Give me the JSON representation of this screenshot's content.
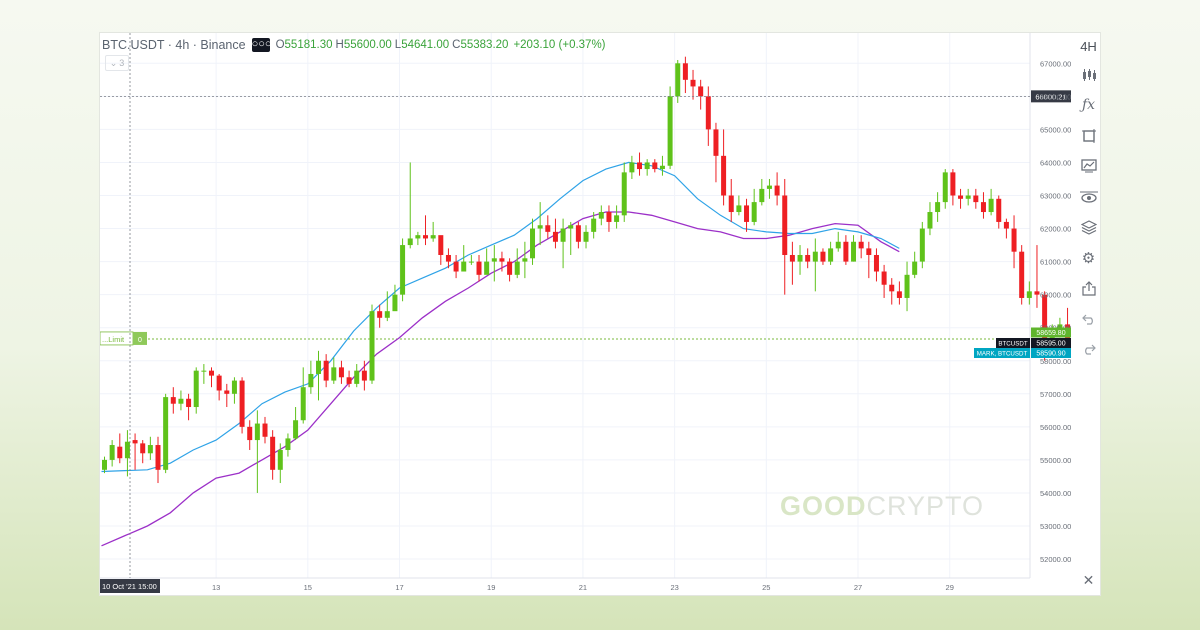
{
  "header": {
    "symbol": "BTC.USDT · 4h · Binance",
    "more_icon": "more-dots-icon",
    "open_label": "O",
    "open_value": "55181.30",
    "high_label": "H",
    "high_value": "55600.00",
    "low_label": "L",
    "low_value": "54641.00",
    "close_label": "C",
    "close_value": "55383.20",
    "change": "+203.10 (+0.37%)",
    "indicator_count": "3"
  },
  "toolbar": {
    "timeframe": "4H",
    "icons": [
      "candles-icon",
      "function-icon",
      "crop-icon",
      "replay-icon",
      "eye-icon",
      "layers-icon",
      "settings-icon",
      "share-icon",
      "undo-icon",
      "redo-icon",
      "close-icon"
    ]
  },
  "order_line": {
    "label": "...Limit",
    "qty": "0"
  },
  "crosshair": {
    "x_label": "10 Oct '21   15:00",
    "y_label": "66000.21",
    "y_value": 66000.21
  },
  "price_tags": {
    "upper": "58659.80",
    "last_symbol": "BTCUSDT",
    "last_price": "58595.00",
    "mark_symbol": "MARK, BTCUSDT",
    "mark_price": "58590.90"
  },
  "brand": {
    "good": "GOOD",
    "crypto": "CRYPTO"
  },
  "colors": {
    "up": "#5fc21a",
    "down": "#ee1f23",
    "ma_fast": "#2fa3e7",
    "ma_slow": "#9c30c8",
    "order_line": "#79b93d",
    "last_tag": "#131722",
    "mark_tag": "#00a6c2"
  },
  "chart_data": {
    "type": "candlestick",
    "interval": "4h",
    "price_range": [
      51800,
      67400
    ],
    "y_ticks": [
      52000,
      53000,
      54000,
      55000,
      56000,
      57000,
      58000,
      59000,
      60000,
      61000,
      62000,
      63000,
      64000,
      65000,
      66000,
      67000
    ],
    "x_tick_labels": [
      "13",
      "15",
      "17",
      "19",
      "21",
      "23",
      "25",
      "27",
      "29"
    ],
    "x_tick_days": [
      13,
      15,
      17,
      19,
      21,
      23,
      25,
      27,
      29
    ],
    "start_day": 10.5,
    "days_per_candle": 0.1667,
    "candles": [
      [
        54700,
        55000,
        54600,
        55100
      ],
      [
        55000,
        55450,
        54800,
        55600
      ],
      [
        55400,
        55050,
        54900,
        55800
      ],
      [
        55050,
        55550,
        54500,
        55900
      ],
      [
        55600,
        55500,
        54700,
        55800
      ],
      [
        55500,
        55200,
        54900,
        55600
      ],
      [
        55200,
        55450,
        55000,
        55700
      ],
      [
        55450,
        54700,
        54300,
        55700
      ],
      [
        54700,
        56900,
        54600,
        57000
      ],
      [
        56900,
        56700,
        56400,
        57200
      ],
      [
        56700,
        56850,
        56500,
        57100
      ],
      [
        56850,
        56600,
        56200,
        57000
      ],
      [
        56600,
        57700,
        56400,
        57800
      ],
      [
        57700,
        57700,
        57300,
        57900
      ],
      [
        57700,
        57550,
        57200,
        57800
      ],
      [
        57550,
        57100,
        56800,
        57600
      ],
      [
        57100,
        57000,
        56600,
        57300
      ],
      [
        57000,
        57400,
        56700,
        57500
      ],
      [
        57400,
        56000,
        55800,
        57500
      ],
      [
        56000,
        55600,
        55300,
        56200
      ],
      [
        55600,
        56100,
        54000,
        56500
      ],
      [
        56100,
        55700,
        55500,
        56300
      ],
      [
        55700,
        54700,
        54400,
        55900
      ],
      [
        54700,
        55300,
        54300,
        55500
      ],
      [
        55300,
        55650,
        55100,
        55800
      ],
      [
        55650,
        56200,
        55600,
        56600
      ],
      [
        56200,
        57200,
        56100,
        57800
      ],
      [
        57200,
        57600,
        57000,
        58000
      ],
      [
        57600,
        58000,
        56800,
        58300
      ],
      [
        58000,
        57400,
        57200,
        58200
      ],
      [
        57400,
        57800,
        57300,
        58100
      ],
      [
        57800,
        57500,
        57300,
        58000
      ],
      [
        57500,
        57300,
        57200,
        57700
      ],
      [
        57300,
        57700,
        57200,
        57900
      ],
      [
        57700,
        57400,
        57100,
        58000
      ],
      [
        57400,
        59500,
        57300,
        59700
      ],
      [
        59500,
        59300,
        59000,
        59700
      ],
      [
        59300,
        59500,
        59200,
        60100
      ],
      [
        59500,
        60000,
        59600,
        60300
      ],
      [
        60000,
        61500,
        59800,
        61700
      ],
      [
        61500,
        61700,
        61400,
        64000
      ],
      [
        61700,
        61800,
        61500,
        61900
      ],
      [
        61800,
        61700,
        61500,
        62400
      ],
      [
        61700,
        61800,
        61600,
        62200
      ],
      [
        61800,
        61200,
        60900,
        61700
      ],
      [
        61200,
        61000,
        60800,
        61400
      ],
      [
        61000,
        60700,
        60500,
        61200
      ],
      [
        60700,
        61000,
        60800,
        61500
      ],
      [
        61000,
        61000,
        60900,
        61200
      ],
      [
        61000,
        60600,
        60400,
        61200
      ],
      [
        60600,
        61000,
        60700,
        61400
      ],
      [
        61000,
        61100,
        60400,
        61500
      ],
      [
        61100,
        61000,
        60700,
        61300
      ],
      [
        61000,
        60600,
        60400,
        61100
      ],
      [
        60600,
        61000,
        60500,
        61400
      ],
      [
        61000,
        61100,
        60500,
        61600
      ],
      [
        61100,
        62000,
        60900,
        62300
      ],
      [
        62000,
        62100,
        61500,
        62800
      ],
      [
        62100,
        61900,
        61700,
        62400
      ],
      [
        61900,
        61600,
        61400,
        62300
      ],
      [
        61600,
        62000,
        60800,
        62300
      ],
      [
        62000,
        62100,
        61200,
        62200
      ],
      [
        62100,
        61600,
        61400,
        62200
      ],
      [
        61600,
        61900,
        61400,
        62100
      ],
      [
        61900,
        62300,
        61700,
        62500
      ],
      [
        62300,
        62500,
        62100,
        62700
      ],
      [
        62500,
        62200,
        61900,
        62700
      ],
      [
        62200,
        62400,
        62000,
        62700
      ],
      [
        62400,
        63700,
        62200,
        64000
      ],
      [
        63700,
        64000,
        63500,
        64200
      ],
      [
        64000,
        63800,
        63600,
        64300
      ],
      [
        63800,
        64000,
        63600,
        64100
      ],
      [
        64000,
        63800,
        63700,
        64100
      ],
      [
        63800,
        63900,
        63600,
        64200
      ],
      [
        63900,
        66000,
        63800,
        66300
      ],
      [
        66000,
        67000,
        65800,
        67100
      ],
      [
        67000,
        66500,
        66100,
        67200
      ],
      [
        66500,
        66300,
        65900,
        66800
      ],
      [
        66300,
        66000,
        65600,
        66500
      ],
      [
        66000,
        65000,
        64500,
        66300
      ],
      [
        65000,
        64200,
        63400,
        65200
      ],
      [
        64200,
        63000,
        62700,
        65000
      ],
      [
        63000,
        62500,
        62200,
        63500
      ],
      [
        62500,
        62700,
        62400,
        63000
      ],
      [
        62700,
        62200,
        61900,
        62900
      ],
      [
        62200,
        62800,
        62100,
        63200
      ],
      [
        62800,
        63200,
        62700,
        63500
      ],
      [
        63200,
        63300,
        62900,
        63500
      ],
      [
        63300,
        63000,
        62700,
        63700
      ],
      [
        63000,
        61200,
        60000,
        63500
      ],
      [
        61200,
        61000,
        60300,
        61600
      ],
      [
        61000,
        61200,
        60600,
        61500
      ],
      [
        61200,
        61000,
        60800,
        61400
      ],
      [
        61000,
        61300,
        60100,
        61700
      ],
      [
        61300,
        61000,
        60900,
        61400
      ],
      [
        61000,
        61400,
        60900,
        61600
      ],
      [
        61400,
        61600,
        61300,
        61900
      ],
      [
        61600,
        61000,
        60900,
        61800
      ],
      [
        61000,
        61600,
        61000,
        61800
      ],
      [
        61600,
        61400,
        61100,
        61800
      ],
      [
        61400,
        61200,
        60500,
        61600
      ],
      [
        61200,
        60700,
        60400,
        61400
      ],
      [
        60700,
        60300,
        59900,
        60900
      ],
      [
        60300,
        60100,
        59700,
        60500
      ],
      [
        60100,
        59900,
        59700,
        60400
      ],
      [
        59900,
        60600,
        59500,
        61000
      ],
      [
        60600,
        61000,
        60500,
        61300
      ],
      [
        61000,
        62000,
        60800,
        62200
      ],
      [
        62000,
        62500,
        61800,
        62800
      ],
      [
        62500,
        62800,
        62200,
        63100
      ],
      [
        62800,
        63700,
        62600,
        63800
      ],
      [
        63700,
        63000,
        62700,
        63800
      ],
      [
        63000,
        62900,
        62600,
        63200
      ],
      [
        62900,
        63000,
        62700,
        63200
      ],
      [
        63000,
        62800,
        62600,
        63200
      ],
      [
        62800,
        62500,
        62300,
        63100
      ],
      [
        62500,
        62900,
        62400,
        63200
      ],
      [
        62900,
        62200,
        62000,
        63000
      ],
      [
        62200,
        62000,
        61700,
        62300
      ],
      [
        62000,
        61300,
        60800,
        62400
      ],
      [
        61300,
        59900,
        59700,
        61500
      ],
      [
        59900,
        60100,
        59700,
        60400
      ],
      [
        60100,
        60000,
        59600,
        61500
      ],
      [
        60000,
        58650,
        58000,
        60100
      ],
      [
        58650,
        58900,
        58500,
        59100
      ],
      [
        58900,
        59100,
        58700,
        59300
      ],
      [
        59100,
        58600,
        58500,
        59600
      ]
    ],
    "ma_fast": [
      [
        10.5,
        54650
      ],
      [
        11.5,
        54700
      ],
      [
        12,
        54900
      ],
      [
        12.5,
        55300
      ],
      [
        13,
        55600
      ],
      [
        13.5,
        56100
      ],
      [
        14,
        56700
      ],
      [
        14.5,
        57050
      ],
      [
        15,
        57300
      ],
      [
        15.5,
        58000
      ],
      [
        16,
        58900
      ],
      [
        16.5,
        59600
      ],
      [
        17,
        60200
      ],
      [
        17.5,
        60500
      ],
      [
        18,
        60800
      ],
      [
        18.5,
        61200
      ],
      [
        19,
        61500
      ],
      [
        19.5,
        61800
      ],
      [
        20,
        62300
      ],
      [
        20.5,
        62900
      ],
      [
        21,
        63450
      ],
      [
        21.5,
        63800
      ],
      [
        22,
        64000
      ],
      [
        22.5,
        63900
      ],
      [
        23,
        63600
      ],
      [
        23.5,
        62900
      ],
      [
        24,
        62400
      ],
      [
        24.5,
        62000
      ],
      [
        25,
        61900
      ],
      [
        25.5,
        61850
      ],
      [
        26,
        61850
      ],
      [
        26.5,
        62000
      ],
      [
        27,
        61900
      ],
      [
        27.5,
        61700
      ],
      [
        27.9,
        61400
      ]
    ],
    "ma_slow": [
      [
        10.5,
        52400
      ],
      [
        11,
        52700
      ],
      [
        11.5,
        53000
      ],
      [
        12,
        53400
      ],
      [
        12.5,
        54000
      ],
      [
        13,
        54450
      ],
      [
        13.5,
        54600
      ],
      [
        14,
        55000
      ],
      [
        14.5,
        55400
      ],
      [
        15,
        55900
      ],
      [
        15.5,
        56700
      ],
      [
        16,
        57500
      ],
      [
        16.5,
        58200
      ],
      [
        17,
        58700
      ],
      [
        17.5,
        59300
      ],
      [
        18,
        59800
      ],
      [
        18.5,
        60200
      ],
      [
        19,
        60650
      ],
      [
        19.5,
        61000
      ],
      [
        20,
        61500
      ],
      [
        20.5,
        61900
      ],
      [
        21,
        62300
      ],
      [
        21.5,
        62500
      ],
      [
        22,
        62500
      ],
      [
        22.5,
        62400
      ],
      [
        23,
        62200
      ],
      [
        23.5,
        62000
      ],
      [
        24,
        61900
      ],
      [
        24.5,
        61700
      ],
      [
        25,
        61700
      ],
      [
        25.5,
        61800
      ],
      [
        26,
        62000
      ],
      [
        26.5,
        62150
      ],
      [
        27,
        62100
      ],
      [
        27.5,
        61600
      ],
      [
        27.9,
        61300
      ]
    ],
    "order_price": 58659.8
  }
}
